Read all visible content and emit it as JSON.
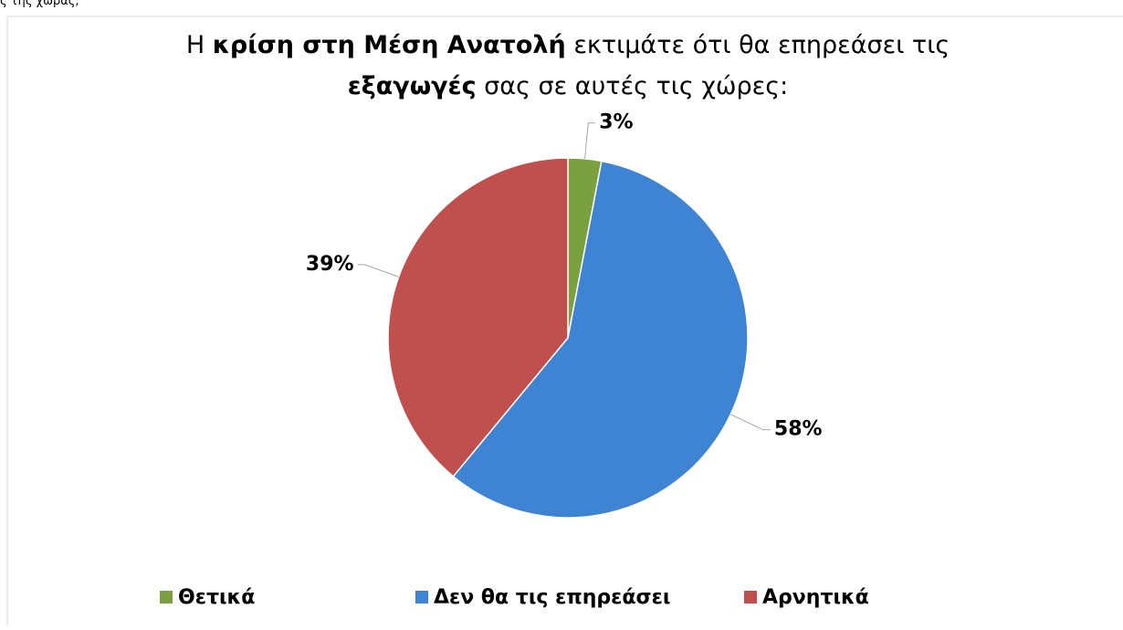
{
  "fragment": "ς της χώρας;",
  "chart_data": {
    "type": "pie",
    "title": [
      [
        {
          "text": "Η ",
          "bold": false
        },
        {
          "text": "κρίση στη Μέση Ανατολή",
          "bold": true
        },
        {
          "text": " εκτιμάτε ότι θα επηρεάσει τις",
          "bold": false
        }
      ],
      [
        {
          "text": "εξαγωγές",
          "bold": true
        },
        {
          "text": " σας σε αυτές τις χώρες:",
          "bold": false
        }
      ]
    ],
    "categories": [
      "Θετικά",
      "Δεν θα τις επηρεάσει",
      "Αρνητικά"
    ],
    "values": [
      3,
      58,
      39
    ],
    "value_labels": [
      "3%",
      "58%",
      "39%"
    ],
    "colors": [
      "#7aa03f",
      "#3f83d3",
      "#c0504d"
    ],
    "legend": "bottom"
  }
}
